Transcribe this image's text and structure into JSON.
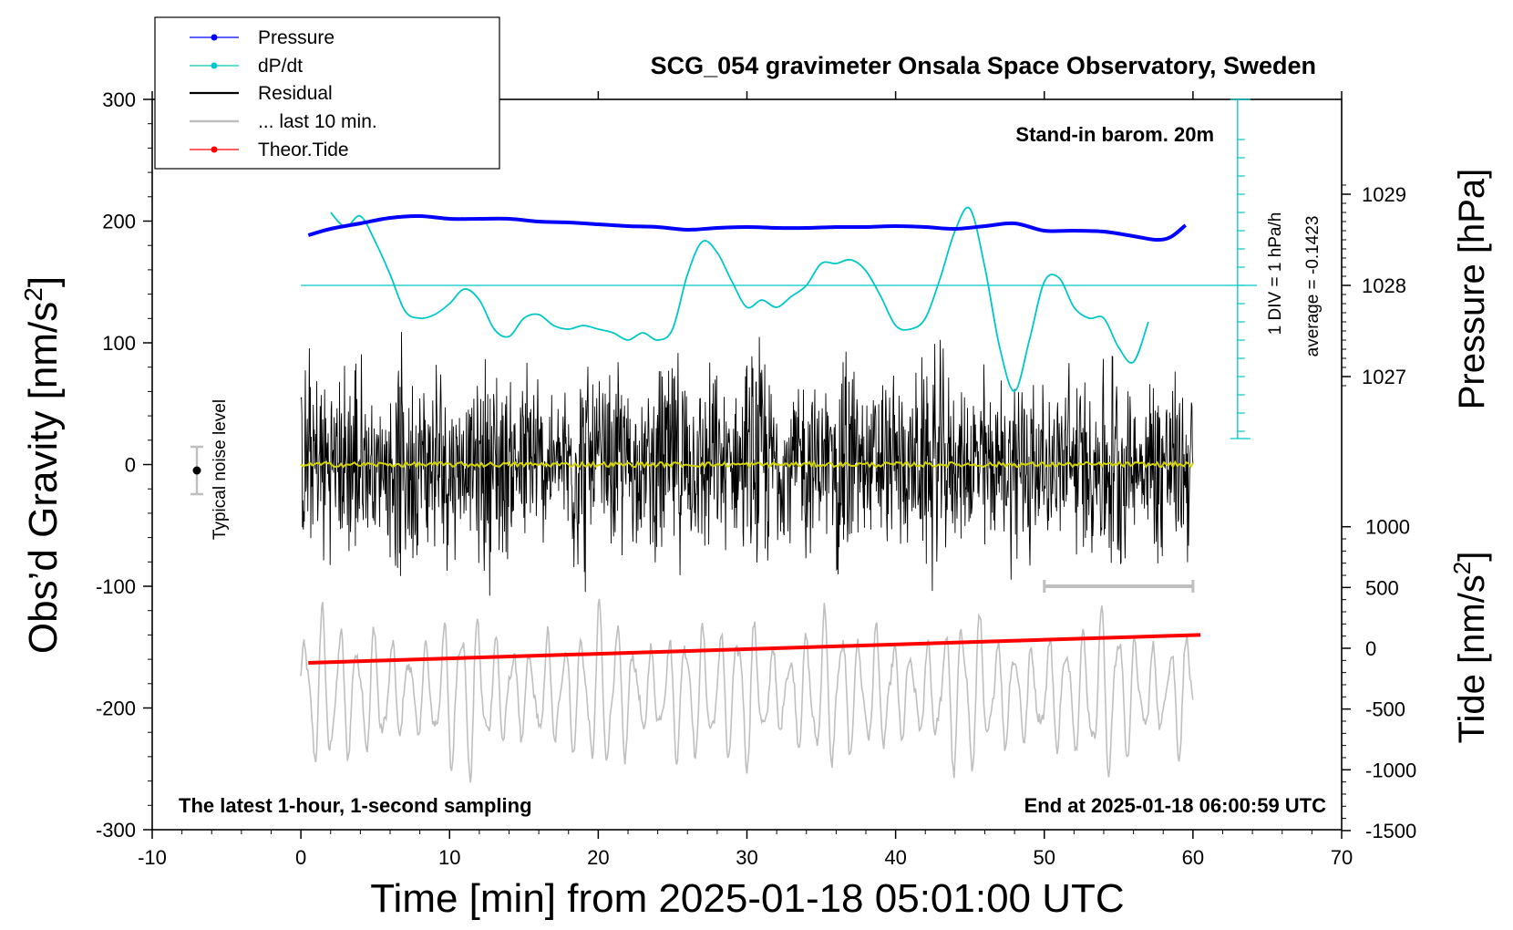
{
  "chart_data": {
    "type": "line",
    "title": "SCG_054 gravimeter Onsala Space Observatory, Sweden",
    "xlabel": "Time [min] from 2025-01-18 05:01:00 UTC",
    "ylabel_left": "Obs’d Gravity [nm/s",
    "ylabel_left_sup": "2",
    "ylabel_left_close": "]",
    "ylabel_pressure": "Pressure [hPa]",
    "ylabel_tide": "Tide [nm/s",
    "ylabel_tide_sup": "2",
    "ylabel_tide_close": "]",
    "xlim": [
      -10,
      70
    ],
    "ylim": [
      -300,
      300
    ],
    "x_ticks": [
      "-10",
      "0",
      "10",
      "20",
      "30",
      "40",
      "50",
      "60",
      "70"
    ],
    "y_ticks": [
      "300",
      "200",
      "100",
      "0",
      "-100",
      "-200",
      "-300"
    ],
    "pressure_ticks": [
      "1029",
      "1028",
      "1027"
    ],
    "pressure_tick_values": [
      1029,
      1028,
      1027
    ],
    "tide_ticks": [
      "1000",
      "500",
      "0",
      "-500",
      "-1000",
      "-1500"
    ],
    "tide_tick_values": [
      1000,
      500,
      0,
      -500,
      -1000,
      -1500
    ],
    "legend": [
      {
        "label": "Pressure",
        "color": "#0000ff",
        "marker": true
      },
      {
        "label": "dP/dt",
        "color": "#00c8c8",
        "marker": true
      },
      {
        "label": "Residual",
        "color": "#000000",
        "marker": false
      },
      {
        "label": "... last 10 min.",
        "color": "#bfbfbf",
        "marker": false
      },
      {
        "label": "Theor.Tide",
        "color": "#ff0000",
        "marker": true
      }
    ],
    "series": [
      {
        "name": "Pressure",
        "color": "#0000ff",
        "axis": "pressure_hPa",
        "x": [
          0.5,
          2,
          4,
          6,
          8,
          10,
          12,
          14,
          16,
          18,
          20,
          22,
          24,
          26,
          28,
          30,
          32,
          34,
          36,
          38,
          40,
          42,
          44,
          46,
          48,
          50,
          52,
          54,
          56,
          57.5,
          58.5,
          59.5
        ],
        "values": [
          1028.55,
          1028.62,
          1028.68,
          1028.74,
          1028.76,
          1028.73,
          1028.73,
          1028.73,
          1028.7,
          1028.69,
          1028.67,
          1028.65,
          1028.64,
          1028.61,
          1028.63,
          1028.64,
          1028.63,
          1028.63,
          1028.64,
          1028.64,
          1028.65,
          1028.64,
          1028.62,
          1028.65,
          1028.68,
          1028.6,
          1028.6,
          1028.59,
          1028.54,
          1028.5,
          1028.53,
          1028.66
        ]
      },
      {
        "name": "dP/dt",
        "color": "#00c8c8",
        "axis": "dPdt_hPa_per_h",
        "baseline_minute": 63,
        "div": "1 DIV = 1 hPa/h",
        "x": [
          2,
          3,
          4,
          5,
          6,
          7,
          8,
          9,
          10,
          11,
          12,
          13,
          14,
          15,
          16,
          17,
          18,
          19,
          20,
          21,
          22,
          23,
          24,
          25,
          26,
          27,
          28,
          29,
          30,
          31,
          32,
          33,
          34,
          35,
          36,
          37,
          38,
          39,
          40,
          41,
          42,
          43,
          44,
          45,
          46,
          47,
          48,
          49,
          50,
          51,
          52,
          53,
          54,
          55,
          56,
          57
        ],
        "values": [
          2.0,
          1.6,
          1.9,
          1.2,
          0.3,
          -0.7,
          -0.9,
          -0.8,
          -0.5,
          -0.1,
          -0.4,
          -1.2,
          -1.4,
          -0.9,
          -0.8,
          -1.1,
          -1.2,
          -1.1,
          -1.2,
          -1.3,
          -1.5,
          -1.3,
          -1.5,
          -1.2,
          0.3,
          1.2,
          0.9,
          0.1,
          -0.6,
          -0.4,
          -0.6,
          -0.3,
          0.0,
          0.6,
          0.6,
          0.7,
          0.4,
          -0.3,
          -1.1,
          -1.2,
          -0.9,
          0.2,
          1.5,
          2.1,
          0.5,
          -1.7,
          -2.9,
          -1.5,
          0.1,
          0.2,
          -0.6,
          -0.9,
          -0.9,
          -1.7,
          -2.1,
          -1.0
        ]
      },
      {
        "name": "Residual",
        "color": "#000000",
        "axis": "gravity_nm_s2",
        "x": [
          0,
          60
        ],
        "amplitude_envelope": [
          60,
          130
        ],
        "note": "1-second sampling noise, roughly ±50 to ±130 nm/s2 about 0"
      },
      {
        "name": "Residual smoothed",
        "color": "#d4d400",
        "axis": "gravity_nm_s2",
        "x": [
          0,
          60
        ],
        "values": [
          0,
          0
        ]
      },
      {
        "name": "... last 10 min.",
        "color": "#bfbfbf",
        "axis": "gravity_nm_s2_offset",
        "x": [
          0,
          60
        ],
        "range": [
          -270,
          -105
        ],
        "note": "oscillating trace of last 10 minutes, centered near -190"
      },
      {
        "name": "Theor.Tide",
        "color": "#ff0000",
        "axis": "tide_nm_s2",
        "x": [
          0.5,
          60.5
        ],
        "values": [
          -120,
          110
        ]
      }
    ],
    "annotations": {
      "stand_in": "Stand-in barom. 20m",
      "div": "1 DIV = 1 hPa/h",
      "average": "average = -0.1423",
      "noise": "Typical noise level",
      "bottom_left": "The latest 1-hour, 1-second sampling",
      "bottom_right": "End at 2025-01-18 06:00:59 UTC"
    },
    "last10_marker": {
      "x": [
        50,
        60
      ],
      "y": -100
    }
  }
}
